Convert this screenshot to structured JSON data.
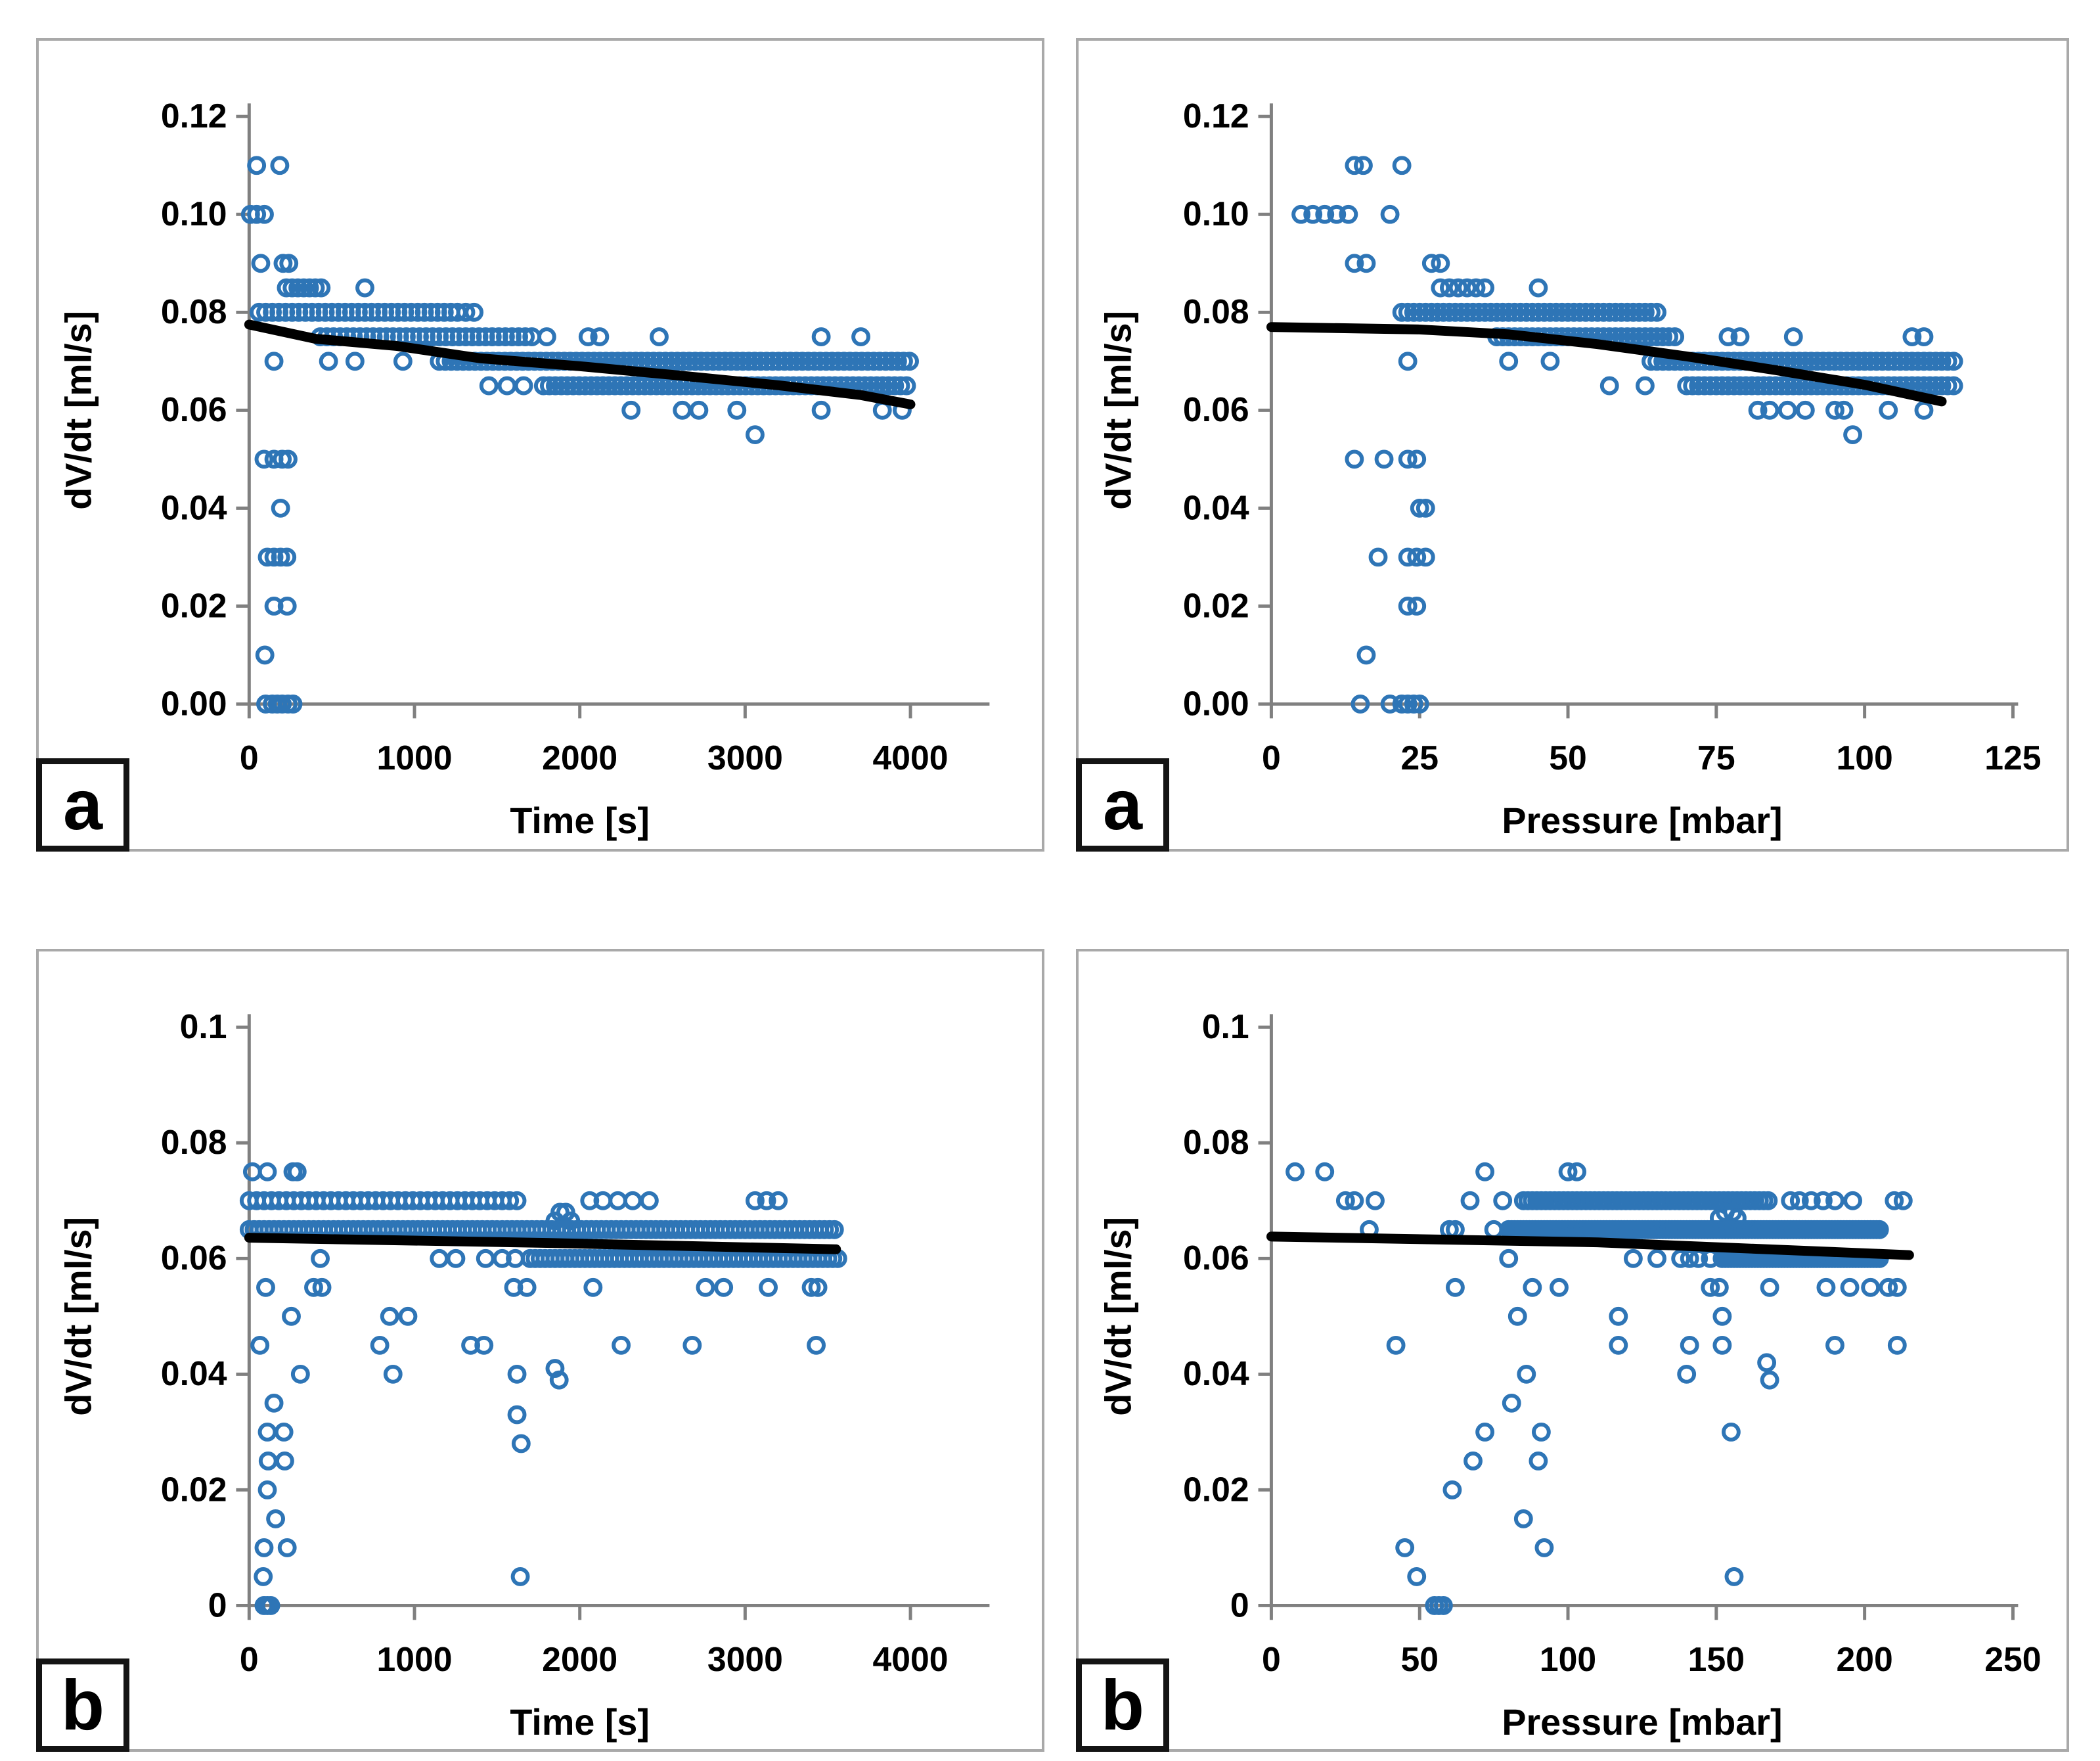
{
  "style": {
    "marker_color": "#2E75B6",
    "trend_color": "#000000",
    "axis_color": "#808080",
    "panel_border_color": "#a9a9a9",
    "text_color": "#000000",
    "background": "#ffffff"
  },
  "chart_data": [
    {
      "panel_label": "a",
      "type": "scatter",
      "title": "",
      "xlabel": "Time [s]",
      "ylabel": "dV/dt [ml/s]",
      "xlim": [
        0,
        4500
      ],
      "ylim": [
        0,
        0.12
      ],
      "xticks": [
        0,
        1000,
        2000,
        3000,
        4000
      ],
      "xtick_labels": [
        "0",
        "1000",
        "2000",
        "3000",
        "4000"
      ],
      "yticks": [
        0,
        0.02,
        0.04,
        0.06,
        0.08,
        0.1,
        0.12
      ],
      "ytick_labels": [
        "0.00",
        "0.02",
        "0.04",
        "0.06",
        "0.08",
        "0.10",
        "0.12"
      ],
      "marker": "open-circle",
      "legend": "none",
      "grid": false,
      "bands": [
        [
          0.08,
          60,
          1260,
          40
        ],
        [
          0.075,
          430,
          1720,
          40
        ],
        [
          0.07,
          1150,
          4000,
          36
        ],
        [
          0.065,
          1780,
          4000,
          36
        ]
      ],
      "rows": [
        {
          "y": 0.11,
          "x": [
            45,
            185
          ]
        },
        {
          "y": 0.1,
          "x": [
            8,
            45,
            92
          ]
        },
        {
          "y": 0.09,
          "x": [
            70,
            205,
            240
          ]
        },
        {
          "y": 0.085,
          "x": [
            225,
            260,
            295,
            330,
            365,
            400,
            435,
            700
          ]
        },
        {
          "y": 0.08,
          "x": [
            1310,
            1360
          ]
        },
        {
          "y": 0.075,
          "x": [
            1800,
            2050,
            2120,
            2480,
            3460,
            3700
          ]
        },
        {
          "y": 0.07,
          "x": [
            150,
            480,
            640,
            930
          ]
        },
        {
          "y": 0.065,
          "x": [
            1450,
            1560,
            1660
          ]
        },
        {
          "y": 0.06,
          "x": [
            2310,
            2620,
            2720,
            2950,
            3460,
            3830,
            3950
          ]
        },
        {
          "y": 0.055,
          "x": [
            3060
          ]
        },
        {
          "y": 0.05,
          "x": [
            90,
            150,
            200,
            235
          ]
        },
        {
          "y": 0.04,
          "x": [
            190
          ]
        },
        {
          "y": 0.03,
          "x": [
            110,
            150,
            190,
            228
          ]
        },
        {
          "y": 0.02,
          "x": [
            150,
            230
          ]
        },
        {
          "y": 0.01,
          "x": [
            95
          ]
        },
        {
          "y": 0.0,
          "x": [
            100,
            140,
            170,
            200,
            235,
            265
          ]
        }
      ],
      "trend": [
        [
          0,
          0.0775
        ],
        [
          400,
          0.0746
        ],
        [
          900,
          0.0731
        ],
        [
          1400,
          0.0706
        ],
        [
          2000,
          0.069
        ],
        [
          2600,
          0.0671
        ],
        [
          3200,
          0.0651
        ],
        [
          3700,
          0.0631
        ],
        [
          4000,
          0.0612
        ]
      ]
    },
    {
      "panel_label": "a",
      "type": "scatter",
      "title": "",
      "xlabel": "Pressure [mbar]",
      "ylabel": "dV/dt [ml/s]",
      "xlim": [
        0,
        125
      ],
      "ylim": [
        0,
        0.12
      ],
      "xticks": [
        0,
        25,
        50,
        75,
        100,
        125
      ],
      "xtick_labels": [
        "0",
        "25",
        "50",
        "75",
        "100",
        "125"
      ],
      "yticks": [
        0,
        0.02,
        0.04,
        0.06,
        0.08,
        0.1,
        0.12
      ],
      "ytick_labels": [
        "0.00",
        "0.02",
        "0.04",
        "0.06",
        "0.08",
        "0.10",
        "0.12"
      ],
      "marker": "open-circle",
      "legend": "none",
      "grid": false,
      "bands": [
        [
          0.08,
          22,
          65,
          1
        ],
        [
          0.075,
          38,
          68,
          1
        ],
        [
          0.07,
          64,
          115,
          1
        ],
        [
          0.065,
          70,
          115,
          1
        ]
      ],
      "rows": [
        {
          "y": 0.11,
          "x": [
            14,
            15.5,
            22
          ]
        },
        {
          "y": 0.1,
          "x": [
            5,
            7,
            9,
            11,
            13,
            20
          ]
        },
        {
          "y": 0.09,
          "x": [
            14,
            16,
            27,
            28.5
          ]
        },
        {
          "y": 0.085,
          "x": [
            28.5,
            30,
            31.5,
            33,
            34.5,
            36,
            45
          ]
        },
        {
          "y": 0.075,
          "x": [
            77,
            79,
            88,
            108,
            110
          ]
        },
        {
          "y": 0.07,
          "x": [
            23,
            40,
            47
          ]
        },
        {
          "y": 0.065,
          "x": [
            57,
            63
          ]
        },
        {
          "y": 0.06,
          "x": [
            82,
            84,
            87,
            90,
            95,
            96.5,
            104,
            110
          ]
        },
        {
          "y": 0.055,
          "x": [
            98
          ]
        },
        {
          "y": 0.05,
          "x": [
            14,
            19,
            23,
            24.5
          ]
        },
        {
          "y": 0.04,
          "x": [
            25,
            26
          ]
        },
        {
          "y": 0.03,
          "x": [
            18,
            23,
            24.5,
            26
          ]
        },
        {
          "y": 0.02,
          "x": [
            23,
            24.5
          ]
        },
        {
          "y": 0.01,
          "x": [
            16
          ]
        },
        {
          "y": 0.0,
          "x": [
            15,
            20,
            22,
            23,
            24,
            25
          ]
        }
      ],
      "trend": [
        [
          0,
          0.077
        ],
        [
          25,
          0.0765
        ],
        [
          40,
          0.0755
        ],
        [
          55,
          0.0735
        ],
        [
          70,
          0.071
        ],
        [
          85,
          0.0682
        ],
        [
          100,
          0.0652
        ],
        [
          113,
          0.0618
        ]
      ]
    },
    {
      "panel_label": "b",
      "type": "scatter",
      "title": "",
      "xlabel": "Time [s]",
      "ylabel": "dV/dt [ml/s]",
      "xlim": [
        0,
        4500
      ],
      "ylim": [
        0,
        0.1
      ],
      "xticks": [
        0,
        1000,
        2000,
        3000,
        4000
      ],
      "xtick_labels": [
        "0",
        "1000",
        "2000",
        "3000",
        "4000"
      ],
      "yticks": [
        0,
        0.02,
        0.04,
        0.06,
        0.08,
        0.1
      ],
      "ytick_labels": [
        "0",
        "0.02",
        "0.04",
        "0.06",
        "0.08",
        "0.1"
      ],
      "marker": "open-circle",
      "legend": "none",
      "grid": false,
      "bands": [
        [
          0.07,
          0,
          1660,
          45
        ],
        [
          0.065,
          0,
          3560,
          30
        ],
        [
          0.06,
          1700,
          3560,
          30
        ]
      ],
      "rows": [
        {
          "y": 0.075,
          "x": [
            20,
            110,
            265,
            290
          ]
        },
        {
          "y": 0.07,
          "x": [
            2060,
            2140,
            2230,
            2320,
            2420,
            3060,
            3130,
            3200
          ]
        },
        {
          "y": 0.068,
          "x": [
            1880,
            1915
          ]
        },
        {
          "y": 0.0665,
          "x": [
            1850,
            1945
          ]
        },
        {
          "y": 0.06,
          "x": [
            430,
            1150,
            1250,
            1430,
            1530,
            1610
          ]
        },
        {
          "y": 0.055,
          "x": [
            100,
            390,
            440,
            1600,
            1680,
            2080,
            2760,
            2870,
            3140,
            3400,
            3440
          ]
        },
        {
          "y": 0.05,
          "x": [
            255,
            850,
            960
          ]
        },
        {
          "y": 0.045,
          "x": [
            65,
            790,
            1340,
            1420,
            2250,
            2680,
            3430
          ]
        },
        {
          "y": 0.041,
          "x": [
            1850
          ]
        },
        {
          "y": 0.04,
          "x": [
            310,
            870,
            1620
          ]
        },
        {
          "y": 0.039,
          "x": [
            1875
          ]
        },
        {
          "y": 0.035,
          "x": [
            150
          ]
        },
        {
          "y": 0.033,
          "x": [
            1620
          ]
        },
        {
          "y": 0.03,
          "x": [
            110,
            210
          ]
        },
        {
          "y": 0.028,
          "x": [
            1645
          ]
        },
        {
          "y": 0.025,
          "x": [
            115,
            215
          ]
        },
        {
          "y": 0.02,
          "x": [
            110
          ]
        },
        {
          "y": 0.015,
          "x": [
            160
          ]
        },
        {
          "y": 0.01,
          "x": [
            90,
            230
          ]
        },
        {
          "y": 0.005,
          "x": [
            85,
            1640
          ]
        },
        {
          "y": 0.0,
          "x": [
            90,
            110,
            130
          ]
        }
      ],
      "trend": [
        [
          0,
          0.0636
        ],
        [
          1800,
          0.0627
        ],
        [
          3550,
          0.0616
        ]
      ]
    },
    {
      "panel_label": "b",
      "type": "scatter",
      "title": "",
      "xlabel": "Pressure [mbar]",
      "ylabel": "dV/dt [ml/s]",
      "xlim": [
        0,
        250
      ],
      "ylim": [
        0,
        0.1
      ],
      "xticks": [
        0,
        50,
        100,
        150,
        200,
        250
      ],
      "xtick_labels": [
        "0",
        "50",
        "100",
        "150",
        "200",
        "250"
      ],
      "yticks": [
        0,
        0.02,
        0.04,
        0.06,
        0.08,
        0.1
      ],
      "ytick_labels": [
        "0",
        "0.02",
        "0.04",
        "0.06",
        "0.08",
        "0.1"
      ],
      "marker": "open-circle",
      "legend": "none",
      "grid": false,
      "bands": [
        [
          0.07,
          85,
          168,
          1.5
        ],
        [
          0.065,
          80,
          205,
          1
        ],
        [
          0.06,
          152,
          205,
          1
        ]
      ],
      "rows": [
        {
          "y": 0.075,
          "x": [
            8,
            18,
            72,
            100,
            103
          ]
        },
        {
          "y": 0.07,
          "x": [
            25,
            28,
            35,
            67,
            78,
            175,
            178,
            182,
            186,
            190,
            196,
            210,
            213
          ]
        },
        {
          "y": 0.068,
          "x": [
            153,
            155.5
          ]
        },
        {
          "y": 0.067,
          "x": [
            151,
            157
          ]
        },
        {
          "y": 0.065,
          "x": [
            33,
            60,
            62,
            75
          ]
        },
        {
          "y": 0.06,
          "x": [
            80,
            122,
            130,
            138,
            141,
            144,
            148
          ]
        },
        {
          "y": 0.055,
          "x": [
            62,
            88,
            97,
            148,
            151,
            168,
            187,
            195,
            202,
            208,
            211
          ]
        },
        {
          "y": 0.05,
          "x": [
            83,
            117,
            152
          ]
        },
        {
          "y": 0.045,
          "x": [
            42,
            117,
            141,
            152,
            190,
            211
          ]
        },
        {
          "y": 0.042,
          "x": [
            167
          ]
        },
        {
          "y": 0.04,
          "x": [
            86,
            140
          ]
        },
        {
          "y": 0.039,
          "x": [
            168
          ]
        },
        {
          "y": 0.035,
          "x": [
            81
          ]
        },
        {
          "y": 0.03,
          "x": [
            72,
            91,
            155
          ]
        },
        {
          "y": 0.025,
          "x": [
            68,
            90
          ]
        },
        {
          "y": 0.02,
          "x": [
            61
          ]
        },
        {
          "y": 0.015,
          "x": [
            85
          ]
        },
        {
          "y": 0.01,
          "x": [
            45,
            92
          ]
        },
        {
          "y": 0.005,
          "x": [
            49,
            156
          ]
        },
        {
          "y": 0.0,
          "x": [
            55,
            56.5,
            58
          ]
        }
      ],
      "trend": [
        [
          0,
          0.0638
        ],
        [
          110,
          0.0628
        ],
        [
          215,
          0.0606
        ]
      ]
    }
  ]
}
